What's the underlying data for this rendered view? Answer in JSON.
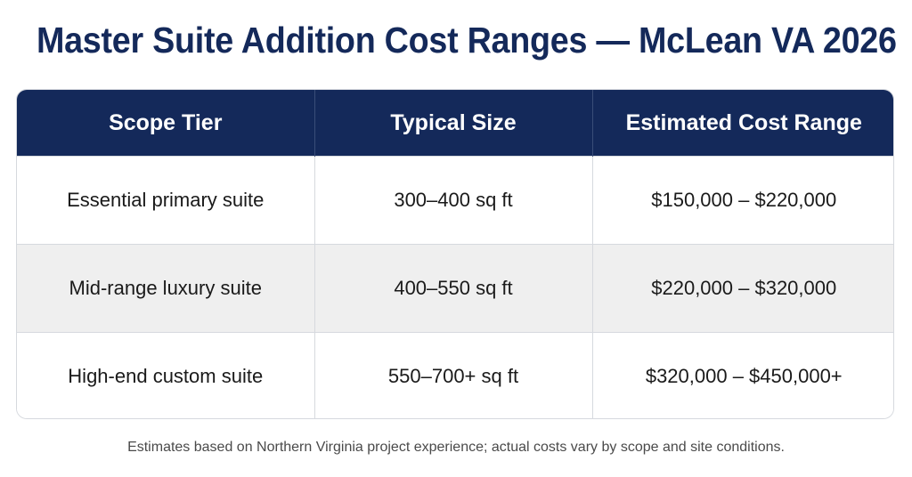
{
  "title": "Master Suite Addition Cost Ranges — McLean VA 2026",
  "table": {
    "headers": [
      "Scope Tier",
      "Typical Size",
      "Estimated Cost Range"
    ],
    "rows": [
      [
        "Essential primary suite",
        "300–400 sq ft",
        "$150,000 – $220,000"
      ],
      [
        "Mid-range luxury suite",
        "400–550 sq ft",
        "$220,000 – $320,000"
      ],
      [
        "High-end custom suite",
        "550–700+ sq ft",
        "$320,000 – $450,000+"
      ]
    ]
  },
  "footnote": "Estimates based on Northern Virginia project experience; actual costs vary by scope and site conditions.",
  "colors": {
    "header_bg": "#14295a",
    "title": "#14295a",
    "alt_row": "#efefef"
  }
}
